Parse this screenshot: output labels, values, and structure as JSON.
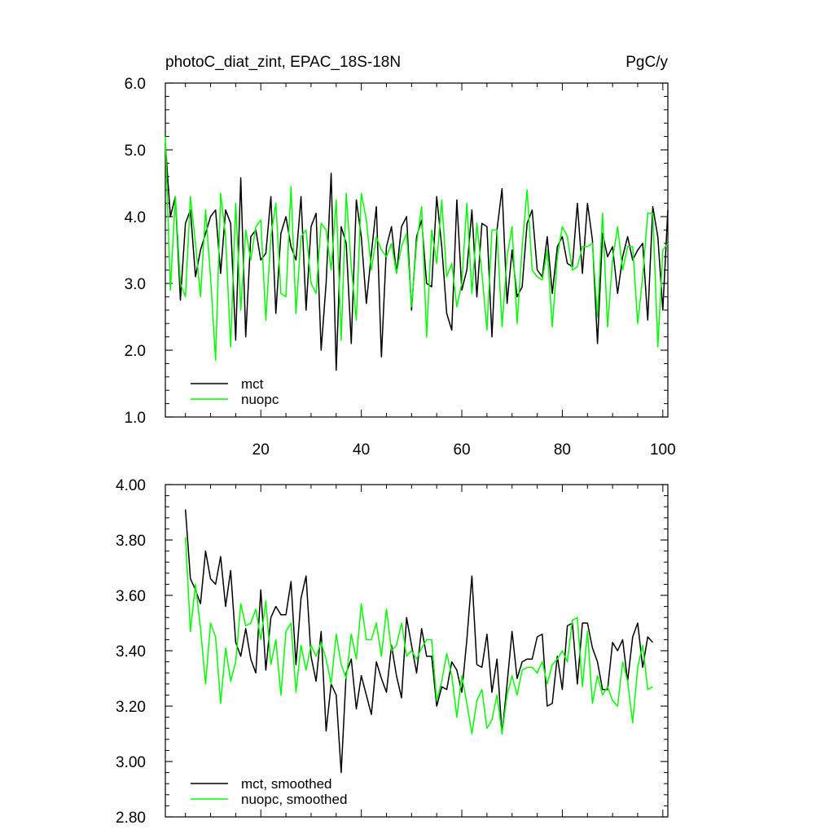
{
  "colors": {
    "background": "#ffffff",
    "axis": "#000000",
    "mct": "#000000",
    "nuopc": "#00ff00"
  },
  "chart_data": [
    {
      "type": "line",
      "title_left": "photoC_diat_zint, EPAC_18S-18N",
      "title_right": "PgC/y",
      "xlim": [
        1,
        101
      ],
      "ylim": [
        1.0,
        6.0
      ],
      "y_ticks": [
        "1.0",
        "2.0",
        "3.0",
        "4.0",
        "5.0",
        "6.0"
      ],
      "x_ticks": [
        "20",
        "40",
        "60",
        "80",
        "100"
      ],
      "legend_position": "bottom-left",
      "x": [
        1,
        2,
        3,
        4,
        5,
        6,
        7,
        8,
        9,
        10,
        11,
        12,
        13,
        14,
        15,
        16,
        17,
        18,
        19,
        20,
        21,
        22,
        23,
        24,
        25,
        26,
        27,
        28,
        29,
        30,
        31,
        32,
        33,
        34,
        35,
        36,
        37,
        38,
        39,
        40,
        41,
        42,
        43,
        44,
        45,
        46,
        47,
        48,
        49,
        50,
        51,
        52,
        53,
        54,
        55,
        56,
        57,
        58,
        59,
        60,
        61,
        62,
        63,
        64,
        65,
        66,
        67,
        68,
        69,
        70,
        71,
        72,
        73,
        74,
        75,
        76,
        77,
        78,
        79,
        80,
        81,
        82,
        83,
        84,
        85,
        86,
        87,
        88,
        89,
        90,
        91,
        92,
        93,
        94,
        95,
        96,
        97,
        98,
        99,
        100,
        101
      ],
      "series": [
        {
          "name": "mct",
          "color": "#000000",
          "values": [
            5.1,
            4.0,
            4.3,
            2.75,
            3.9,
            4.1,
            3.1,
            3.5,
            3.75,
            4.0,
            4.1,
            3.15,
            4.1,
            3.9,
            2.15,
            4.58,
            2.2,
            3.7,
            3.8,
            3.35,
            3.45,
            4.3,
            2.55,
            3.75,
            4.0,
            3.55,
            3.35,
            4.3,
            2.6,
            3.85,
            4.05,
            2.0,
            3.0,
            4.65,
            1.7,
            3.85,
            3.6,
            2.1,
            4.25,
            3.7,
            2.7,
            3.45,
            4.15,
            1.9,
            3.55,
            3.85,
            3.15,
            3.85,
            4.0,
            2.6,
            3.7,
            3.95,
            3.0,
            2.95,
            4.3,
            3.55,
            2.55,
            2.3,
            4.25,
            2.9,
            3.2,
            4.1,
            2.8,
            3.9,
            3.85,
            2.2,
            3.8,
            4.42,
            2.7,
            3.5,
            2.8,
            2.95,
            3.9,
            4.1,
            3.2,
            3.1,
            3.7,
            2.85,
            3.55,
            3.7,
            3.3,
            3.25,
            4.2,
            3.15,
            4.2,
            3.65,
            2.1,
            3.75,
            3.4,
            3.55,
            2.85,
            3.4,
            3.7,
            3.35,
            3.5,
            3.6,
            2.45,
            4.15,
            3.7,
            2.6,
            4.1
          ]
        },
        {
          "name": "nuopc",
          "color": "#00ff00",
          "values": [
            5.2,
            2.9,
            4.3,
            3.0,
            2.8,
            4.3,
            3.6,
            2.8,
            4.1,
            3.1,
            1.85,
            4.35,
            3.7,
            2.05,
            4.2,
            2.6,
            3.8,
            3.35,
            3.85,
            3.95,
            2.45,
            3.7,
            4.2,
            2.85,
            2.8,
            4.45,
            2.55,
            3.7,
            3.8,
            3.0,
            2.85,
            3.9,
            3.8,
            3.2,
            4.25,
            2.15,
            4.35,
            3.25,
            2.45,
            4.35,
            3.95,
            3.2,
            3.7,
            3.5,
            3.4,
            3.6,
            3.15,
            3.55,
            3.75,
            2.65,
            3.6,
            4.15,
            2.2,
            3.8,
            3.3,
            4.25,
            3.1,
            3.3,
            2.65,
            3.0,
            4.2,
            2.85,
            3.9,
            3.15,
            2.3,
            3.8,
            3.8,
            2.35,
            3.4,
            3.85,
            2.4,
            3.55,
            4.4,
            3.2,
            3.1,
            3.05,
            3.5,
            2.35,
            3.4,
            3.85,
            3.7,
            3.2,
            3.25,
            3.55,
            3.55,
            3.6,
            2.5,
            4.05,
            2.35,
            3.35,
            3.85,
            3.2,
            3.55,
            3.55,
            2.4,
            3.1,
            4.05,
            4.05,
            2.05,
            3.5,
            3.6
          ]
        }
      ]
    },
    {
      "type": "line",
      "xlim": [
        1,
        101
      ],
      "ylim": [
        2.8,
        4.0
      ],
      "y_ticks": [
        "2.80",
        "3.00",
        "3.20",
        "3.40",
        "3.60",
        "3.80",
        "4.00"
      ],
      "legend_position": "bottom-left",
      "x": [
        5,
        6,
        7,
        8,
        9,
        10,
        11,
        12,
        13,
        14,
        15,
        16,
        17,
        18,
        19,
        20,
        21,
        22,
        23,
        24,
        25,
        26,
        27,
        28,
        29,
        30,
        31,
        32,
        33,
        34,
        35,
        36,
        37,
        38,
        39,
        40,
        41,
        42,
        43,
        44,
        45,
        46,
        47,
        48,
        49,
        50,
        51,
        52,
        53,
        54,
        55,
        56,
        57,
        58,
        59,
        60,
        61,
        62,
        63,
        64,
        65,
        66,
        67,
        68,
        69,
        70,
        71,
        72,
        73,
        74,
        75,
        76,
        77,
        78,
        79,
        80,
        81,
        82,
        83,
        84,
        85,
        86,
        87,
        88,
        89,
        90,
        91,
        92,
        93,
        94,
        95,
        96,
        97,
        98
      ],
      "series": [
        {
          "name": "mct, smoothed",
          "color": "#000000",
          "values": [
            3.91,
            3.66,
            3.62,
            3.57,
            3.76,
            3.66,
            3.64,
            3.74,
            3.56,
            3.69,
            3.43,
            3.38,
            3.48,
            3.37,
            3.32,
            3.62,
            3.33,
            3.52,
            3.56,
            3.53,
            3.53,
            3.65,
            3.35,
            3.59,
            3.67,
            3.38,
            3.29,
            3.47,
            3.11,
            3.28,
            3.24,
            2.96,
            3.32,
            3.37,
            3.19,
            3.31,
            3.24,
            3.17,
            3.36,
            3.3,
            3.25,
            3.42,
            3.31,
            3.23,
            3.52,
            3.42,
            3.32,
            3.48,
            3.38,
            3.38,
            3.2,
            3.27,
            3.26,
            3.36,
            3.33,
            3.25,
            3.44,
            3.67,
            3.35,
            3.34,
            3.46,
            3.25,
            3.37,
            3.1,
            3.28,
            3.47,
            3.3,
            3.36,
            3.37,
            3.37,
            3.45,
            3.46,
            3.2,
            3.21,
            3.38,
            3.26,
            3.49,
            3.5,
            3.28,
            3.5,
            3.5,
            3.41,
            3.36,
            3.26,
            3.26,
            3.43,
            3.4,
            3.44,
            3.29,
            3.45,
            3.5,
            3.34,
            3.45,
            3.43
          ]
        },
        {
          "name": "nuopc, smoothed",
          "color": "#00ff00",
          "values": [
            3.81,
            3.47,
            3.64,
            3.48,
            3.28,
            3.5,
            3.45,
            3.21,
            3.41,
            3.29,
            3.36,
            3.57,
            3.49,
            3.5,
            3.55,
            3.44,
            3.58,
            3.35,
            3.44,
            3.24,
            3.47,
            3.5,
            3.25,
            3.42,
            3.33,
            3.42,
            3.38,
            3.43,
            3.37,
            3.28,
            3.46,
            3.35,
            3.3,
            3.46,
            3.37,
            3.57,
            3.44,
            3.44,
            3.5,
            3.38,
            3.55,
            3.4,
            3.42,
            3.5,
            3.38,
            3.4,
            3.37,
            3.41,
            3.44,
            3.44,
            3.22,
            3.29,
            3.39,
            3.31,
            3.16,
            3.31,
            3.21,
            3.1,
            3.22,
            3.26,
            3.12,
            3.15,
            3.24,
            3.1,
            3.24,
            3.31,
            3.24,
            3.33,
            3.34,
            3.34,
            3.32,
            3.36,
            3.28,
            3.35,
            3.37,
            3.4,
            3.36,
            3.51,
            3.52,
            3.27,
            3.47,
            3.21,
            3.31,
            3.24,
            3.27,
            3.22,
            3.2,
            3.36,
            3.29,
            3.14,
            3.34,
            3.42,
            3.26,
            3.27
          ]
        }
      ]
    }
  ]
}
